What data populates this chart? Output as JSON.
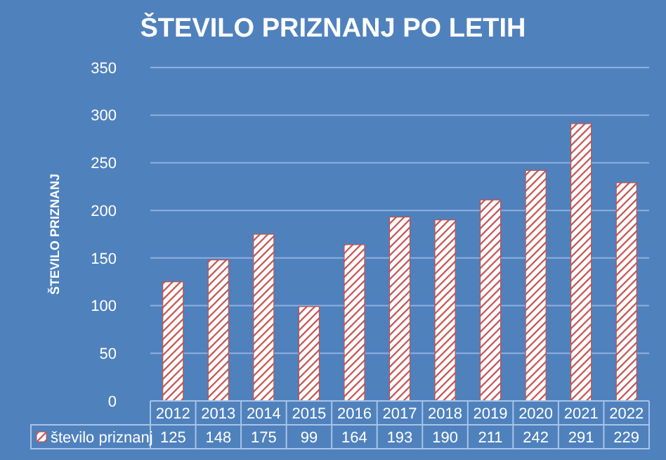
{
  "chart_data": {
    "type": "bar",
    "title": "ŠTEVILO PRIZNANJ PO LETIH",
    "ylabel": "ŠTEVILO PRIZNANJ",
    "categories": [
      "2012",
      "2013",
      "2014",
      "2015",
      "2016",
      "2017",
      "2018",
      "2019",
      "2020",
      "2021",
      "2022"
    ],
    "series": [
      {
        "name": "število priznanj",
        "color": "#c0504d",
        "values": [
          125,
          148,
          175,
          99,
          164,
          193,
          190,
          211,
          242,
          291,
          229
        ]
      }
    ],
    "ylim": [
      0,
      350
    ],
    "yticks": [
      0,
      50,
      100,
      150,
      200,
      250,
      300,
      350
    ],
    "grid": "y",
    "data_labels": true,
    "legend": "bottom"
  }
}
